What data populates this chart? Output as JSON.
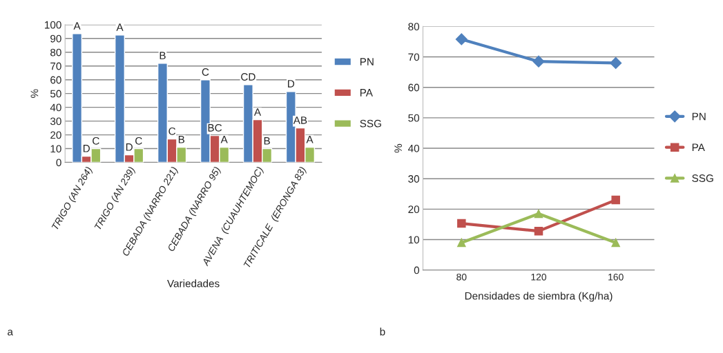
{
  "chart_data": [
    {
      "type": "bar",
      "xlabel": "Variedades",
      "ylabel": "%",
      "categories": [
        "TRIGO (AN 264)",
        "TRIGO (AN 239)",
        "CEBADA (NARRO 221)",
        "CEBADA (NARRO 95)",
        "AVENA  (CUAUHTEMOC)",
        "TRITICALE  (ERONGA 83)"
      ],
      "series": [
        {
          "name": "PN",
          "color": "#4f81bd",
          "values": [
            93.5,
            92.5,
            72,
            60,
            56.5,
            51.5
          ],
          "value_labels": [
            "A",
            "A",
            "B",
            "C",
            "CD",
            "D"
          ]
        },
        {
          "name": "PA",
          "color": "#c0504d",
          "values": [
            4.5,
            5.5,
            17,
            19.5,
            31,
            25
          ],
          "value_labels": [
            "D",
            "D",
            "C",
            "BC",
            "A",
            "AB"
          ]
        },
        {
          "name": "SSG",
          "color": "#9bbb59",
          "values": [
            10,
            10,
            11,
            11,
            10,
            11
          ],
          "value_labels": [
            "C",
            "C",
            "B",
            "A",
            "B",
            "A"
          ]
        }
      ],
      "ylim": [
        0,
        100
      ],
      "yticks": [
        0,
        10,
        20,
        30,
        40,
        50,
        60,
        70,
        80,
        90,
        100
      ],
      "grid": "y",
      "legend": "right",
      "annotations": [
        "a"
      ]
    },
    {
      "type": "line",
      "xlabel": "Densidades de siembra (Kg/ha)",
      "ylabel": "%",
      "categories": [
        "80",
        "120",
        "160"
      ],
      "series": [
        {
          "name": "PN",
          "color": "#4f81bd",
          "values": [
            75.8,
            68.5,
            68
          ],
          "marker": "diamond"
        },
        {
          "name": "PA",
          "color": "#c0504d",
          "values": [
            15.3,
            12.8,
            23
          ],
          "marker": "square"
        },
        {
          "name": "SSG",
          "color": "#9bbb59",
          "values": [
            9,
            18.5,
            9
          ],
          "marker": "triangle"
        }
      ],
      "ylim": [
        0,
        80
      ],
      "yticks": [
        0,
        10,
        20,
        30,
        40,
        50,
        60,
        70,
        80
      ],
      "grid": "y",
      "legend": "right",
      "annotations": [
        "b"
      ]
    }
  ]
}
